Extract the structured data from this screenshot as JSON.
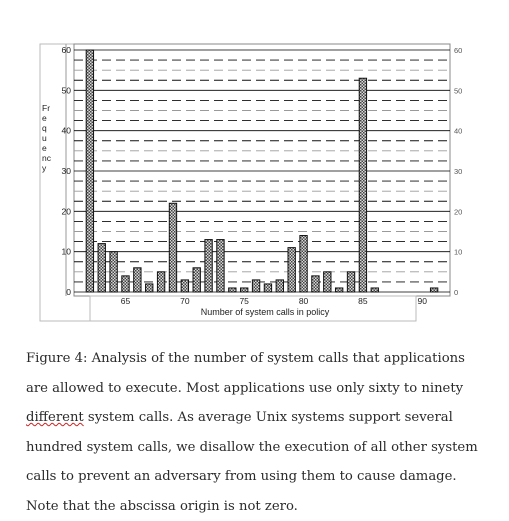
{
  "chart_data": {
    "type": "bar",
    "xlabel": "Number of system calls in policy",
    "ylabel": "Frequency",
    "ylim": [
      0,
      60
    ],
    "yticks": [
      0,
      10,
      20,
      30,
      40,
      50,
      60
    ],
    "xtick_labels": [
      "65",
      "70",
      "75",
      "80",
      "85",
      "90"
    ],
    "xtick_values": [
      65,
      70,
      75,
      80,
      85,
      90
    ],
    "xrange": [
      61,
      92
    ],
    "grid": true,
    "legend": "none",
    "series": [
      {
        "x": [
          62,
          63,
          64,
          65,
          66,
          67,
          68,
          69,
          70,
          71,
          72,
          73,
          74,
          75,
          76,
          77,
          78,
          79,
          80,
          81,
          82,
          83,
          84,
          85,
          86,
          87,
          88,
          89,
          90,
          91
        ],
        "values": [
          60,
          12,
          10,
          4,
          6,
          2,
          5,
          22,
          3,
          6,
          13,
          13,
          1,
          1,
          3,
          2,
          3,
          11,
          14,
          4,
          5,
          1,
          5,
          53,
          1,
          0,
          0,
          0,
          0,
          1
        ]
      }
    ],
    "colors": {
      "bar": "#8a8a8a",
      "bar_stroke": "#111111",
      "grid": "#000000",
      "dash_dark": "#111111",
      "dash_light": "#9a9a9a"
    }
  },
  "caption": {
    "part1": "Figure 4: Analysis of the number of system calls that applications are allowed to execute. Most applications use only sixty to ninety ",
    "misspelled": "different",
    "part2": " system calls. As average Unix systems support several hundred system calls, we disallow the execution of all other system calls to prevent an adversary from using them to cause damage. Note that the abscissa origin is not zero."
  }
}
